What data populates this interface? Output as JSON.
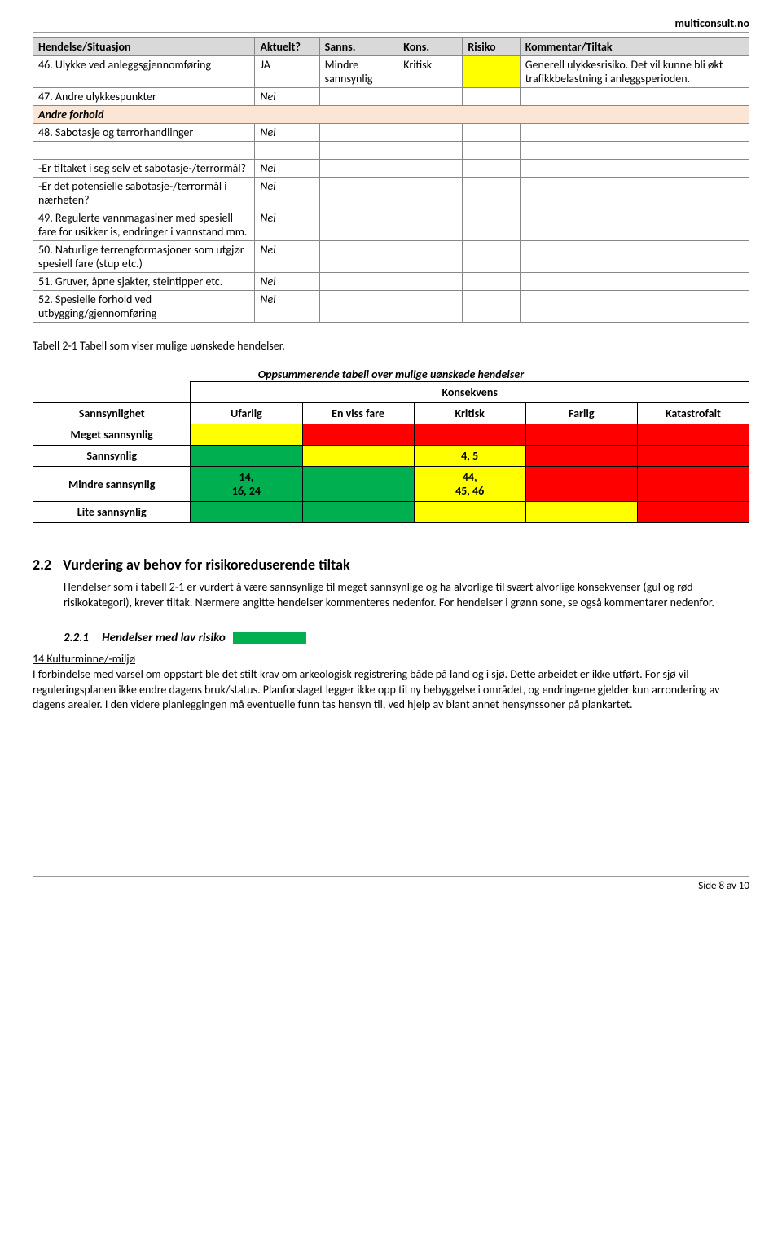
{
  "site": "multiconsult.no",
  "table1": {
    "headers": [
      "Hendelse/Situasjon",
      "Aktuelt?",
      "Sanns.",
      "Kons.",
      "Risiko",
      "Kommentar/Tiltak"
    ],
    "rows": [
      {
        "event": "46. Ulykke ved anleggsgjennomføring",
        "akt": "JA",
        "sanns": "Mindre sannsynlig",
        "kons": "Kritisk",
        "risk_color": "#ffff00",
        "komm": "Generell ulykkesrisiko. Det vil kunne bli økt trafikkbelastning i anleggsperioden."
      },
      {
        "event": "47. Andre ulykkespunkter",
        "akt": "Nei",
        "sanns": "",
        "kons": "",
        "risk_color": "",
        "komm": ""
      }
    ],
    "section2": "Andre forhold",
    "rows2": [
      {
        "event": "48. Sabotasje og terrorhandlinger",
        "akt": "Nei"
      },
      {
        "event": "-Er tiltaket i seg selv et sabotasje-/terrormål?",
        "akt": "Nei"
      },
      {
        "event": "-Er det potensielle sabotasje-/terrormål i nærheten?",
        "akt": "Nei"
      },
      {
        "event": "49. Regulerte vannmagasiner med spesiell fare for usikker is, endringer i vannstand mm.",
        "akt": "Nei"
      },
      {
        "event": "50. Naturlige terrengformasjoner som utgjør spesiell fare (stup etc.)",
        "akt": "Nei"
      },
      {
        "event": "51. Gruver, åpne sjakter, steintipper etc.",
        "akt": "Nei"
      },
      {
        "event": "52. Spesielle forhold ved utbygging/gjennomføring",
        "akt": "Nei"
      }
    ]
  },
  "caption": "Tabell 2-1 Tabell som viser mulige uønskede hendelser.",
  "table2": {
    "title": "Oppsummerende tabell over mulige uønskede hendelser",
    "subtitle": "Konsekvens",
    "rowheader": "Sannsynlighet",
    "cols": [
      "Ufarlig",
      "En viss fare",
      "Kritisk",
      "Farlig",
      "Katastrofalt"
    ],
    "rows": [
      {
        "label": "Meget sannsynlig",
        "cells": [
          {
            "c": "#ffff00",
            "t": ""
          },
          {
            "c": "#ff0000",
            "t": ""
          },
          {
            "c": "#ff0000",
            "t": ""
          },
          {
            "c": "#ff0000",
            "t": ""
          },
          {
            "c": "#ff0000",
            "t": ""
          }
        ]
      },
      {
        "label": "Sannsynlig",
        "cells": [
          {
            "c": "#00b050",
            "t": ""
          },
          {
            "c": "#ffff00",
            "t": ""
          },
          {
            "c": "#ffff00",
            "t": "4, 5"
          },
          {
            "c": "#ff0000",
            "t": ""
          },
          {
            "c": "#ff0000",
            "t": ""
          }
        ]
      },
      {
        "label": "Mindre sannsynlig",
        "cells": [
          {
            "c": "#00b050",
            "t": "14, 16, 24"
          },
          {
            "c": "#00b050",
            "t": ""
          },
          {
            "c": "#ffff00",
            "t": "44, 45, 46"
          },
          {
            "c": "#ff0000",
            "t": ""
          },
          {
            "c": "#ff0000",
            "t": ""
          }
        ]
      },
      {
        "label": "Lite sannsynlig",
        "cells": [
          {
            "c": "#00b050",
            "t": ""
          },
          {
            "c": "#00b050",
            "t": ""
          },
          {
            "c": "#ffff00",
            "t": ""
          },
          {
            "c": "#ffff00",
            "t": ""
          },
          {
            "c": "#ff0000",
            "t": ""
          }
        ]
      }
    ]
  },
  "section22": {
    "num": "2.2",
    "title": "Vurdering av behov for risikoreduserende tiltak",
    "body": "Hendelser som i tabell 2-1 er vurdert å være sannsynlige til meget sannsynlige og ha alvorlige til svært alvorlige konsekvenser (gul og rød risikokategori), krever tiltak. Nærmere angitte hendelser kommenteres nedenfor. For hendelser i grønn sone, se også kommentarer nedenfor."
  },
  "section221": {
    "num": "2.2.1",
    "title": "Hendelser med lav risiko",
    "sub": "14 Kulturminne/-miljø",
    "body": "I forbindelse med varsel om oppstart ble det stilt krav om arkeologisk registrering både på land og i sjø. Dette arbeidet er ikke utført. For sjø vil reguleringsplanen ikke endre dagens bruk/status. Planforslaget legger ikke opp til ny bebyggelse i området, og endringene gjelder kun arrondering av dagens arealer. I den videre planleggingen må eventuelle funn tas hensyn til, ved hjelp av blant annet hensynssoner på plankartet."
  },
  "footer": "Side 8 av 10"
}
